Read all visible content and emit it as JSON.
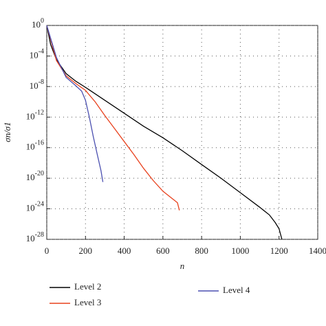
{
  "chart_data": {
    "type": "line",
    "xlabel": "n",
    "ylabel": "σn/σ1",
    "log_y": true,
    "grid": true,
    "xlim": [
      0,
      1400
    ],
    "xticks": [
      0,
      200,
      400,
      600,
      800,
      1000,
      1200,
      1400
    ],
    "ylim": [
      1e-28,
      1
    ],
    "yticks": [
      {
        "value": 1,
        "label": "10^0"
      },
      {
        "value": 0.0001,
        "label": "10^-4"
      },
      {
        "value": 1e-08,
        "label": "10^-8"
      },
      {
        "value": 1e-12,
        "label": "10^-12"
      },
      {
        "value": 1e-16,
        "label": "10^-16"
      },
      {
        "value": 1e-20,
        "label": "10^-20"
      },
      {
        "value": 1e-24,
        "label": "10^-24"
      },
      {
        "value": 1e-28,
        "label": "10^-28"
      }
    ],
    "series": [
      {
        "name": "Level 2",
        "color": "#000000",
        "x": [
          0,
          20,
          50,
          100,
          150,
          200,
          300,
          400,
          500,
          600,
          700,
          800,
          900,
          1000,
          1100,
          1150,
          1180,
          1200,
          1215
        ],
        "values": [
          1,
          0.0032,
          3.2e-05,
          5e-07,
          5e-08,
          7.9e-09,
          1.6e-10,
          3.2e-12,
          6.3e-14,
          2e-15,
          4e-17,
          6.3e-19,
          1e-20,
          1.3e-22,
          1.6e-24,
          1.6e-25,
          1.6e-26,
          2.5e-27,
          1e-28
        ]
      },
      {
        "name": "Level 3",
        "color": "#e8401c",
        "x": [
          0,
          50,
          100,
          150,
          200,
          250,
          300,
          350,
          400,
          450,
          500,
          550,
          600,
          650,
          675,
          685
        ],
        "values": [
          1,
          2.5e-05,
          2.5e-07,
          2.5e-08,
          3.2e-09,
          1e-10,
          1.6e-12,
          3.2e-14,
          6.3e-16,
          1.3e-17,
          2e-19,
          5e-21,
          2e-22,
          2e-23,
          6.3e-24,
          6.3e-25
        ]
      },
      {
        "name": "Level 4",
        "color": "#4a4fb0",
        "x": [
          0,
          50,
          100,
          150,
          180,
          200,
          220,
          240,
          260,
          280,
          290
        ],
        "values": [
          1,
          6.3e-05,
          1.6e-07,
          1.3e-08,
          2.5e-09,
          1.6e-10,
          1e-12,
          3.2e-15,
          1.6e-17,
          1e-19,
          3.2e-21
        ]
      }
    ]
  }
}
